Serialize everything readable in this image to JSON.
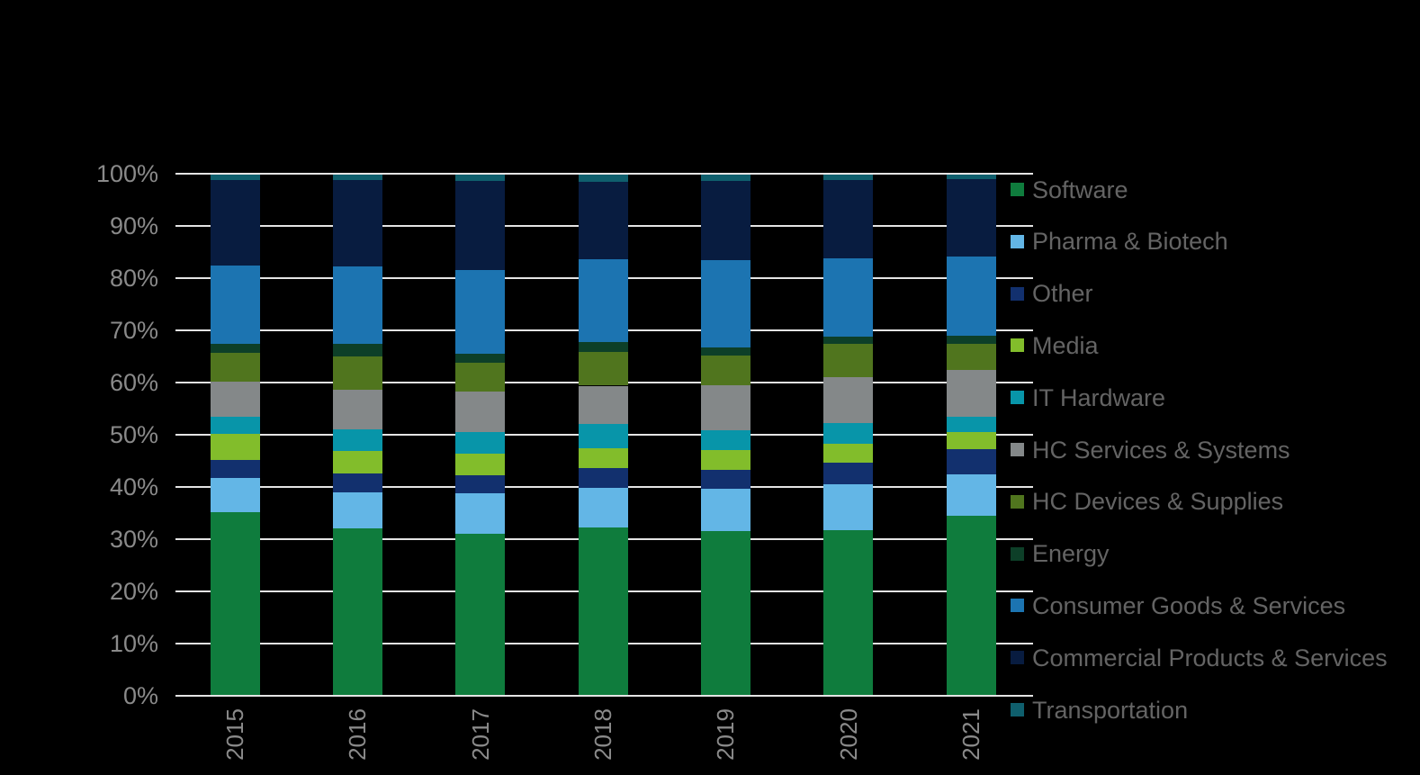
{
  "chart_data": {
    "type": "bar",
    "stacked": true,
    "units": "percent_share",
    "categories": [
      "2015",
      "2016",
      "2017",
      "2018",
      "2019",
      "2020",
      "2021"
    ],
    "series": [
      {
        "name": "Software",
        "color": "#0F7C3D",
        "values": [
          35.2,
          32.0,
          31.1,
          32.2,
          31.5,
          31.7,
          34.5
        ]
      },
      {
        "name": "Pharma & Biotech",
        "color": "#63B6E6",
        "values": [
          6.6,
          6.9,
          7.7,
          7.7,
          8.2,
          8.8,
          8.0
        ]
      },
      {
        "name": "Other",
        "color": "#12306E",
        "values": [
          3.4,
          3.7,
          3.4,
          3.8,
          3.6,
          4.1,
          4.8
        ]
      },
      {
        "name": "Media",
        "color": "#82BD2B",
        "values": [
          4.9,
          4.3,
          4.1,
          3.8,
          3.8,
          3.7,
          3.3
        ]
      },
      {
        "name": "IT Hardware",
        "color": "#0895A9",
        "values": [
          3.3,
          4.1,
          4.3,
          4.5,
          3.8,
          4.0,
          2.9
        ]
      },
      {
        "name": "HC Services & Systems",
        "color": "#848889",
        "values": [
          6.7,
          7.7,
          7.7,
          7.4,
          8.5,
          8.8,
          8.9
        ]
      },
      {
        "name": "HC Devices & Supplies",
        "color": "#50751E",
        "values": [
          5.6,
          6.3,
          5.5,
          6.4,
          5.8,
          6.3,
          5.0
        ]
      },
      {
        "name": "Energy",
        "color": "#0D3F28",
        "values": [
          1.7,
          2.4,
          1.8,
          1.9,
          1.6,
          1.4,
          1.6
        ]
      },
      {
        "name": "Consumer Goods & Services",
        "color": "#1C74B1",
        "values": [
          15.0,
          14.9,
          15.9,
          15.9,
          16.6,
          15.0,
          15.1
        ]
      },
      {
        "name": "Commercial Products & Services",
        "color": "#081C40",
        "values": [
          16.4,
          16.5,
          17.1,
          14.9,
          15.2,
          15.0,
          14.8
        ]
      },
      {
        "name": "Transportation",
        "color": "#0F5F6D",
        "values": [
          1.2,
          1.2,
          1.4,
          1.5,
          1.4,
          1.2,
          1.1
        ]
      }
    ],
    "stack_order": "series listed bottom-to-top",
    "y_axis": {
      "min": 0,
      "max": 100,
      "step": 10,
      "tick_labels": [
        "0%",
        "10%",
        "20%",
        "30%",
        "40%",
        "50%",
        "60%",
        "70%",
        "80%",
        "90%",
        "100%"
      ],
      "grid": true
    },
    "legend_position": "right",
    "style": {
      "background_color": "#000000",
      "gridline_color": "#E4E4E4",
      "axis_text_color": "#8A8A8A",
      "legend_text_color": "#646464"
    }
  }
}
